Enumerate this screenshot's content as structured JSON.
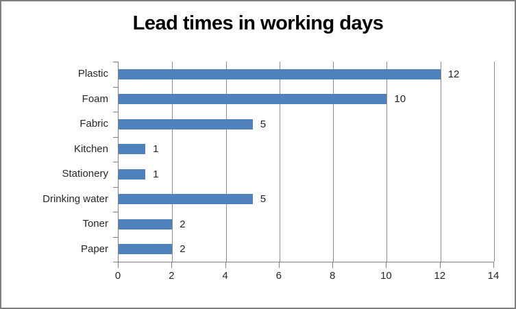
{
  "window": {
    "background_color": "#ffffff",
    "border_color": "#7f7f7f"
  },
  "chart_data": {
    "type": "bar",
    "orientation": "horizontal",
    "title": "Lead times in working days",
    "categories": [
      "Plastic",
      "Foam",
      "Fabric",
      "Kitchen",
      "Stationery",
      "Drinking water",
      "Toner",
      "Paper"
    ],
    "values": [
      12,
      10,
      5,
      1,
      1,
      5,
      2,
      2
    ],
    "data_labels": [
      "12",
      "10",
      "5",
      "1",
      "1",
      "5",
      "2",
      "2"
    ],
    "xlabel": "",
    "ylabel": "",
    "xlim": [
      0,
      14
    ],
    "x_ticks": [
      0,
      2,
      4,
      6,
      8,
      10,
      12,
      14
    ],
    "grid": true,
    "legend": false,
    "colors": {
      "bar": "#4f81bd",
      "gridline": "#8c8c8c",
      "axis": "#808080",
      "title_text": "#000000",
      "label_text": "#262626"
    }
  }
}
